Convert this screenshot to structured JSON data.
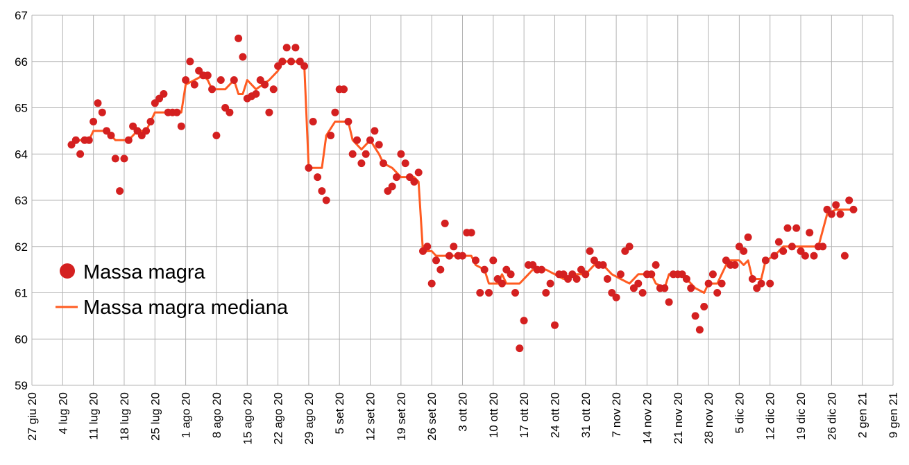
{
  "chart_data": {
    "type": "line",
    "title": "",
    "xlabel": "",
    "ylabel": "",
    "ylim": [
      59,
      67
    ],
    "yticks": [
      59,
      60,
      61,
      62,
      63,
      64,
      65,
      66,
      67
    ],
    "xlim": [
      "2020-06-27",
      "2021-01-09"
    ],
    "xtick_labels": [
      "27 giu 20",
      "4 lug 20",
      "11 lug 20",
      "18 lug 20",
      "25 lug 20",
      "1 ago 20",
      "8 ago 20",
      "15 ago 20",
      "22 ago 20",
      "29 ago 20",
      "5 set 20",
      "12 set 20",
      "19 set 20",
      "26 set 20",
      "3 ott 20",
      "10 ott 20",
      "17 ott 20",
      "24 ott 20",
      "31 ott 20",
      "7 nov 20",
      "14 nov 20",
      "21 nov 20",
      "28 nov 20",
      "5 dic 20",
      "12 dic 20",
      "19 dic 20",
      "26 dic 20",
      "2 gen 21",
      "9 gen 21"
    ],
    "grid": true,
    "legend_position": "left",
    "series": [
      {
        "name": "Massa magra",
        "kind": "scatter",
        "color": "#d42020",
        "points": [
          [
            "2020-07-06",
            64.2
          ],
          [
            "2020-07-07",
            64.3
          ],
          [
            "2020-07-08",
            64.0
          ],
          [
            "2020-07-09",
            64.3
          ],
          [
            "2020-07-10",
            64.3
          ],
          [
            "2020-07-11",
            64.7
          ],
          [
            "2020-07-12",
            65.1
          ],
          [
            "2020-07-13",
            64.9
          ],
          [
            "2020-07-14",
            64.5
          ],
          [
            "2020-07-15",
            64.4
          ],
          [
            "2020-07-16",
            63.9
          ],
          [
            "2020-07-17",
            63.2
          ],
          [
            "2020-07-18",
            63.9
          ],
          [
            "2020-07-19",
            64.3
          ],
          [
            "2020-07-20",
            64.6
          ],
          [
            "2020-07-21",
            64.5
          ],
          [
            "2020-07-22",
            64.4
          ],
          [
            "2020-07-23",
            64.5
          ],
          [
            "2020-07-24",
            64.7
          ],
          [
            "2020-07-25",
            65.1
          ],
          [
            "2020-07-26",
            65.2
          ],
          [
            "2020-07-27",
            65.3
          ],
          [
            "2020-07-28",
            64.9
          ],
          [
            "2020-07-29",
            64.9
          ],
          [
            "2020-07-30",
            64.9
          ],
          [
            "2020-07-31",
            64.6
          ],
          [
            "2020-08-01",
            65.6
          ],
          [
            "2020-08-02",
            66.0
          ],
          [
            "2020-08-03",
            65.5
          ],
          [
            "2020-08-04",
            65.8
          ],
          [
            "2020-08-05",
            65.7
          ],
          [
            "2020-08-06",
            65.7
          ],
          [
            "2020-08-07",
            65.4
          ],
          [
            "2020-08-08",
            64.4
          ],
          [
            "2020-08-09",
            65.6
          ],
          [
            "2020-08-10",
            65.0
          ],
          [
            "2020-08-11",
            64.9
          ],
          [
            "2020-08-12",
            65.6
          ],
          [
            "2020-08-13",
            66.5
          ],
          [
            "2020-08-14",
            66.1
          ],
          [
            "2020-08-15",
            65.2
          ],
          [
            "2020-08-16",
            65.25
          ],
          [
            "2020-08-17",
            65.3
          ],
          [
            "2020-08-18",
            65.6
          ],
          [
            "2020-08-19",
            65.5
          ],
          [
            "2020-08-20",
            64.9
          ],
          [
            "2020-08-21",
            65.4
          ],
          [
            "2020-08-22",
            65.9
          ],
          [
            "2020-08-23",
            66.0
          ],
          [
            "2020-08-24",
            66.3
          ],
          [
            "2020-08-25",
            66.0
          ],
          [
            "2020-08-26",
            66.3
          ],
          [
            "2020-08-27",
            66.0
          ],
          [
            "2020-08-28",
            65.9
          ],
          [
            "2020-08-29",
            63.7
          ],
          [
            "2020-08-30",
            64.7
          ],
          [
            "2020-08-31",
            63.5
          ],
          [
            "2020-09-01",
            63.2
          ],
          [
            "2020-09-02",
            63.0
          ],
          [
            "2020-09-03",
            64.4
          ],
          [
            "2020-09-04",
            64.9
          ],
          [
            "2020-09-05",
            65.4
          ],
          [
            "2020-09-06",
            65.4
          ],
          [
            "2020-09-07",
            64.7
          ],
          [
            "2020-09-08",
            64.0
          ],
          [
            "2020-09-09",
            64.3
          ],
          [
            "2020-09-10",
            63.8
          ],
          [
            "2020-09-11",
            64.0
          ],
          [
            "2020-09-12",
            64.3
          ],
          [
            "2020-09-13",
            64.5
          ],
          [
            "2020-09-14",
            64.2
          ],
          [
            "2020-09-15",
            63.8
          ],
          [
            "2020-09-16",
            63.2
          ],
          [
            "2020-09-17",
            63.3
          ],
          [
            "2020-09-18",
            63.5
          ],
          [
            "2020-09-19",
            64.0
          ],
          [
            "2020-09-20",
            63.8
          ],
          [
            "2020-09-21",
            63.5
          ],
          [
            "2020-09-22",
            63.4
          ],
          [
            "2020-09-23",
            63.6
          ],
          [
            "2020-09-24",
            61.9
          ],
          [
            "2020-09-25",
            62.0
          ],
          [
            "2020-09-26",
            61.2
          ],
          [
            "2020-09-27",
            61.7
          ],
          [
            "2020-09-28",
            61.5
          ],
          [
            "2020-09-29",
            62.5
          ],
          [
            "2020-09-30",
            61.8
          ],
          [
            "2020-10-01",
            62.0
          ],
          [
            "2020-10-02",
            61.8
          ],
          [
            "2020-10-03",
            61.8
          ],
          [
            "2020-10-04",
            62.3
          ],
          [
            "2020-10-05",
            62.3
          ],
          [
            "2020-10-06",
            61.7
          ],
          [
            "2020-10-07",
            61.0
          ],
          [
            "2020-10-08",
            61.5
          ],
          [
            "2020-10-09",
            61.0
          ],
          [
            "2020-10-10",
            61.7
          ],
          [
            "2020-10-11",
            61.3
          ],
          [
            "2020-10-12",
            61.2
          ],
          [
            "2020-10-13",
            61.5
          ],
          [
            "2020-10-14",
            61.4
          ],
          [
            "2020-10-15",
            61.0
          ],
          [
            "2020-10-16",
            59.8
          ],
          [
            "2020-10-17",
            60.4
          ],
          [
            "2020-10-18",
            61.6
          ],
          [
            "2020-10-19",
            61.6
          ],
          [
            "2020-10-20",
            61.5
          ],
          [
            "2020-10-21",
            61.5
          ],
          [
            "2020-10-22",
            61.0
          ],
          [
            "2020-10-23",
            61.2
          ],
          [
            "2020-10-24",
            60.3
          ],
          [
            "2020-10-25",
            61.4
          ],
          [
            "2020-10-26",
            61.4
          ],
          [
            "2020-10-27",
            61.3
          ],
          [
            "2020-10-28",
            61.4
          ],
          [
            "2020-10-29",
            61.3
          ],
          [
            "2020-10-30",
            61.5
          ],
          [
            "2020-10-31",
            61.4
          ],
          [
            "2020-11-01",
            61.9
          ],
          [
            "2020-11-02",
            61.7
          ],
          [
            "2020-11-03",
            61.6
          ],
          [
            "2020-11-04",
            61.6
          ],
          [
            "2020-11-05",
            61.3
          ],
          [
            "2020-11-06",
            61.0
          ],
          [
            "2020-11-07",
            60.9
          ],
          [
            "2020-11-08",
            61.4
          ],
          [
            "2020-11-09",
            61.9
          ],
          [
            "2020-11-10",
            62.0
          ],
          [
            "2020-11-11",
            61.1
          ],
          [
            "2020-11-12",
            61.2
          ],
          [
            "2020-11-13",
            61.0
          ],
          [
            "2020-11-14",
            61.4
          ],
          [
            "2020-11-15",
            61.4
          ],
          [
            "2020-11-16",
            61.6
          ],
          [
            "2020-11-17",
            61.1
          ],
          [
            "2020-11-18",
            61.1
          ],
          [
            "2020-11-19",
            60.8
          ],
          [
            "2020-11-20",
            61.4
          ],
          [
            "2020-11-21",
            61.4
          ],
          [
            "2020-11-22",
            61.4
          ],
          [
            "2020-11-23",
            61.3
          ],
          [
            "2020-11-24",
            61.1
          ],
          [
            "2020-11-25",
            60.5
          ],
          [
            "2020-11-26",
            60.2
          ],
          [
            "2020-11-27",
            60.7
          ],
          [
            "2020-11-28",
            61.2
          ],
          [
            "2020-11-29",
            61.4
          ],
          [
            "2020-11-30",
            61.0
          ],
          [
            "2020-12-01",
            61.2
          ],
          [
            "2020-12-02",
            61.7
          ],
          [
            "2020-12-03",
            61.6
          ],
          [
            "2020-12-04",
            61.6
          ],
          [
            "2020-12-05",
            62.0
          ],
          [
            "2020-12-06",
            61.9
          ],
          [
            "2020-12-07",
            62.2
          ],
          [
            "2020-12-08",
            61.3
          ],
          [
            "2020-12-09",
            61.1
          ],
          [
            "2020-12-10",
            61.2
          ],
          [
            "2020-12-11",
            61.7
          ],
          [
            "2020-12-12",
            61.2
          ],
          [
            "2020-12-13",
            61.8
          ],
          [
            "2020-12-14",
            62.1
          ],
          [
            "2020-12-15",
            61.9
          ],
          [
            "2020-12-16",
            62.4
          ],
          [
            "2020-12-17",
            62.0
          ],
          [
            "2020-12-18",
            62.4
          ],
          [
            "2020-12-19",
            61.9
          ],
          [
            "2020-12-20",
            61.8
          ],
          [
            "2020-12-21",
            62.3
          ],
          [
            "2020-12-22",
            61.8
          ],
          [
            "2020-12-23",
            62.0
          ],
          [
            "2020-12-24",
            62.0
          ],
          [
            "2020-12-25",
            62.8
          ],
          [
            "2020-12-26",
            62.7
          ],
          [
            "2020-12-27",
            62.9
          ],
          [
            "2020-12-28",
            62.7
          ],
          [
            "2020-12-29",
            61.8
          ],
          [
            "2020-12-30",
            63.0
          ],
          [
            "2020-12-31",
            62.8
          ]
        ]
      },
      {
        "name": "Massa magra mediana",
        "kind": "line",
        "color": "#ff5b21",
        "points": [
          [
            "2020-07-06",
            64.2
          ],
          [
            "2020-07-08",
            64.3
          ],
          [
            "2020-07-10",
            64.3
          ],
          [
            "2020-07-11",
            64.5
          ],
          [
            "2020-07-14",
            64.5
          ],
          [
            "2020-07-15",
            64.4
          ],
          [
            "2020-07-16",
            64.3
          ],
          [
            "2020-07-19",
            64.3
          ],
          [
            "2020-07-21",
            64.5
          ],
          [
            "2020-07-23",
            64.5
          ],
          [
            "2020-07-24",
            64.7
          ],
          [
            "2020-07-25",
            64.9
          ],
          [
            "2020-07-31",
            64.9
          ],
          [
            "2020-08-01",
            65.5
          ],
          [
            "2020-08-03",
            65.6
          ],
          [
            "2020-08-05",
            65.7
          ],
          [
            "2020-08-06",
            65.6
          ],
          [
            "2020-08-07",
            65.4
          ],
          [
            "2020-08-10",
            65.4
          ],
          [
            "2020-08-12",
            65.6
          ],
          [
            "2020-08-13",
            65.3
          ],
          [
            "2020-08-14",
            65.3
          ],
          [
            "2020-08-15",
            65.6
          ],
          [
            "2020-08-17",
            65.4
          ],
          [
            "2020-08-20",
            65.6
          ],
          [
            "2020-08-22",
            65.8
          ],
          [
            "2020-08-23",
            66.0
          ],
          [
            "2020-08-26",
            66.0
          ],
          [
            "2020-08-28",
            65.9
          ],
          [
            "2020-08-29",
            63.7
          ],
          [
            "2020-09-01",
            63.7
          ],
          [
            "2020-09-02",
            64.4
          ],
          [
            "2020-09-04",
            64.7
          ],
          [
            "2020-09-07",
            64.7
          ],
          [
            "2020-09-08",
            64.3
          ],
          [
            "2020-09-10",
            64.1
          ],
          [
            "2020-09-12",
            64.3
          ],
          [
            "2020-09-14",
            64.0
          ],
          [
            "2020-09-15",
            63.8
          ],
          [
            "2020-09-17",
            63.7
          ],
          [
            "2020-09-19",
            63.5
          ],
          [
            "2020-09-22",
            63.5
          ],
          [
            "2020-09-23",
            63.4
          ],
          [
            "2020-09-24",
            61.9
          ],
          [
            "2020-09-26",
            61.9
          ],
          [
            "2020-09-27",
            61.8
          ],
          [
            "2020-09-29",
            61.8
          ],
          [
            "2020-10-02",
            61.8
          ],
          [
            "2020-10-05",
            61.8
          ],
          [
            "2020-10-06",
            61.6
          ],
          [
            "2020-10-08",
            61.5
          ],
          [
            "2020-10-09",
            61.2
          ],
          [
            "2020-10-11",
            61.2
          ],
          [
            "2020-10-12",
            61.4
          ],
          [
            "2020-10-13",
            61.2
          ],
          [
            "2020-10-16",
            61.2
          ],
          [
            "2020-10-18",
            61.4
          ],
          [
            "2020-10-19",
            61.5
          ],
          [
            "2020-10-22",
            61.5
          ],
          [
            "2020-10-24",
            61.4
          ],
          [
            "2020-10-26",
            61.3
          ],
          [
            "2020-10-29",
            61.4
          ],
          [
            "2020-10-31",
            61.4
          ],
          [
            "2020-11-02",
            61.6
          ],
          [
            "2020-11-04",
            61.6
          ],
          [
            "2020-11-06",
            61.4
          ],
          [
            "2020-11-08",
            61.3
          ],
          [
            "2020-11-10",
            61.2
          ],
          [
            "2020-11-12",
            61.4
          ],
          [
            "2020-11-15",
            61.4
          ],
          [
            "2020-11-16",
            61.2
          ],
          [
            "2020-11-18",
            61.1
          ],
          [
            "2020-11-19",
            61.4
          ],
          [
            "2020-11-22",
            61.4
          ],
          [
            "2020-11-23",
            61.3
          ],
          [
            "2020-11-25",
            61.1
          ],
          [
            "2020-11-27",
            61.0
          ],
          [
            "2020-11-28",
            61.2
          ],
          [
            "2020-11-30",
            61.2
          ],
          [
            "2020-12-02",
            61.6
          ],
          [
            "2020-12-03",
            61.7
          ],
          [
            "2020-12-05",
            61.7
          ],
          [
            "2020-12-06",
            61.6
          ],
          [
            "2020-12-07",
            61.7
          ],
          [
            "2020-12-08",
            61.3
          ],
          [
            "2020-12-10",
            61.3
          ],
          [
            "2020-12-11",
            61.7
          ],
          [
            "2020-12-13",
            61.8
          ],
          [
            "2020-12-15",
            62.0
          ],
          [
            "2020-12-23",
            62.0
          ],
          [
            "2020-12-25",
            62.7
          ],
          [
            "2020-12-27",
            62.8
          ],
          [
            "2020-12-29",
            62.8
          ],
          [
            "2020-12-31",
            62.8
          ]
        ]
      }
    ]
  }
}
